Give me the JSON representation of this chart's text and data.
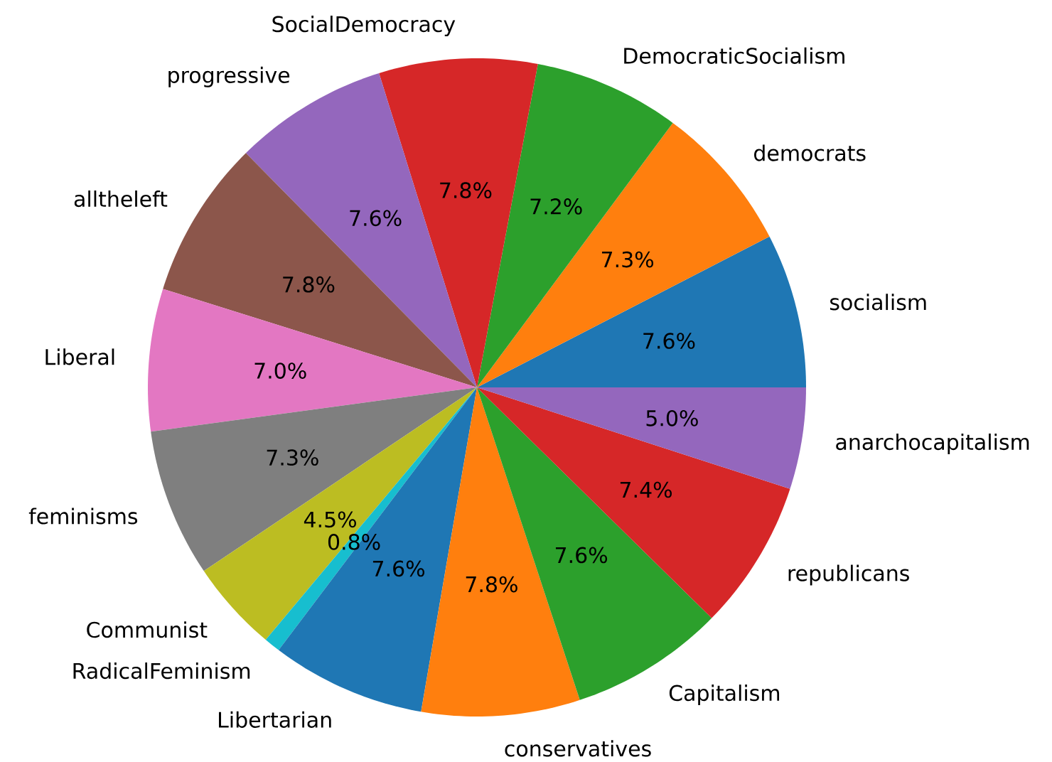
{
  "chart_data": {
    "type": "pie",
    "categories": [
      "socialism",
      "democrats",
      "DemocraticSocialism",
      "SocialDemocracy",
      "progressive",
      "alltheleft",
      "Liberal",
      "feminisms",
      "Communist",
      "RadicalFeminism",
      "Libertarian",
      "conservatives",
      "Capitalism",
      "republicans",
      "anarchocapitalism"
    ],
    "values": [
      7.6,
      7.3,
      7.2,
      7.8,
      7.6,
      7.8,
      7.0,
      7.3,
      4.5,
      0.8,
      7.6,
      7.8,
      7.6,
      7.4,
      5.0
    ],
    "value_labels": [
      "7.6%",
      "7.3%",
      "7.2%",
      "7.8%",
      "7.6%",
      "7.8%",
      "7.0%",
      "7.3%",
      "4.5%",
      "0.8%",
      "7.6%",
      "7.8%",
      "7.6%",
      "7.4%",
      "5.0%"
    ],
    "colors": [
      "#1f77b4",
      "#ff7f0e",
      "#2ca02c",
      "#d62728",
      "#9467bd",
      "#8c564b",
      "#e377c2",
      "#7f7f7f",
      "#bcbd22",
      "#17becf",
      "#1f77b4",
      "#ff7f0e",
      "#2ca02c",
      "#d62728",
      "#9467bd"
    ]
  }
}
